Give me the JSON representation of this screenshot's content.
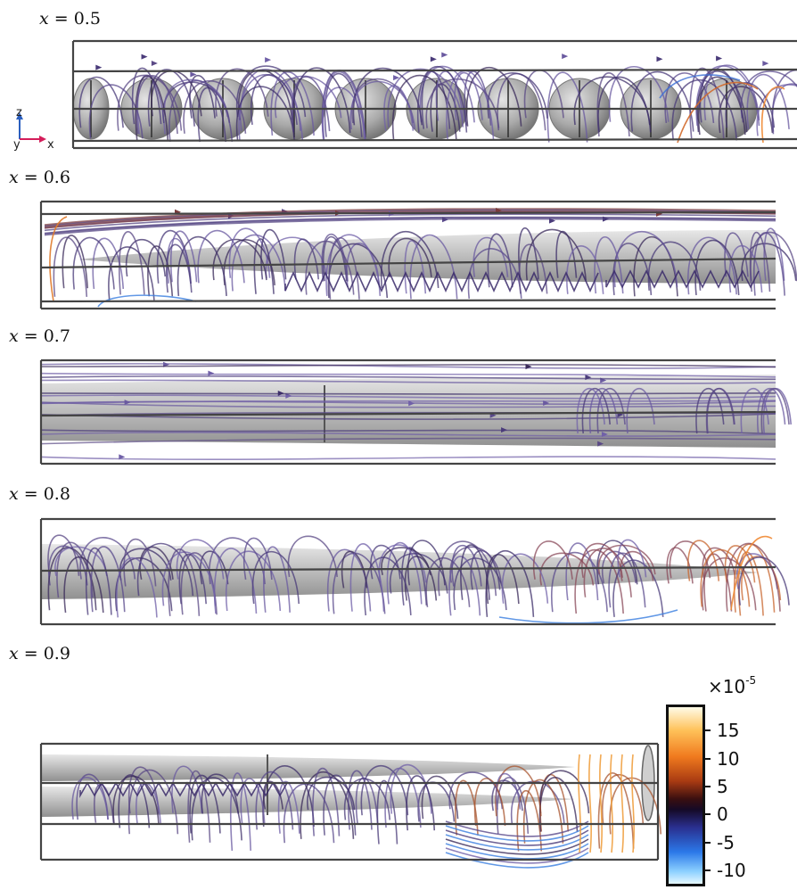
{
  "panels": [
    {
      "var": "x",
      "eq": " = ",
      "value": "0.5"
    },
    {
      "var": "x",
      "eq": " = ",
      "value": "0.6"
    },
    {
      "var": "x",
      "eq": " = ",
      "value": "0.7"
    },
    {
      "var": "x",
      "eq": " = ",
      "value": "0.8"
    },
    {
      "var": "x",
      "eq": " = ",
      "value": "0.9"
    }
  ],
  "axes": {
    "z": "z",
    "y": "y",
    "x": "x"
  },
  "colorbar": {
    "multiplier_base": "×10",
    "multiplier_exp": "-5",
    "ticks": [
      "15",
      "10",
      "5",
      "0",
      "-5",
      "-10"
    ]
  }
}
